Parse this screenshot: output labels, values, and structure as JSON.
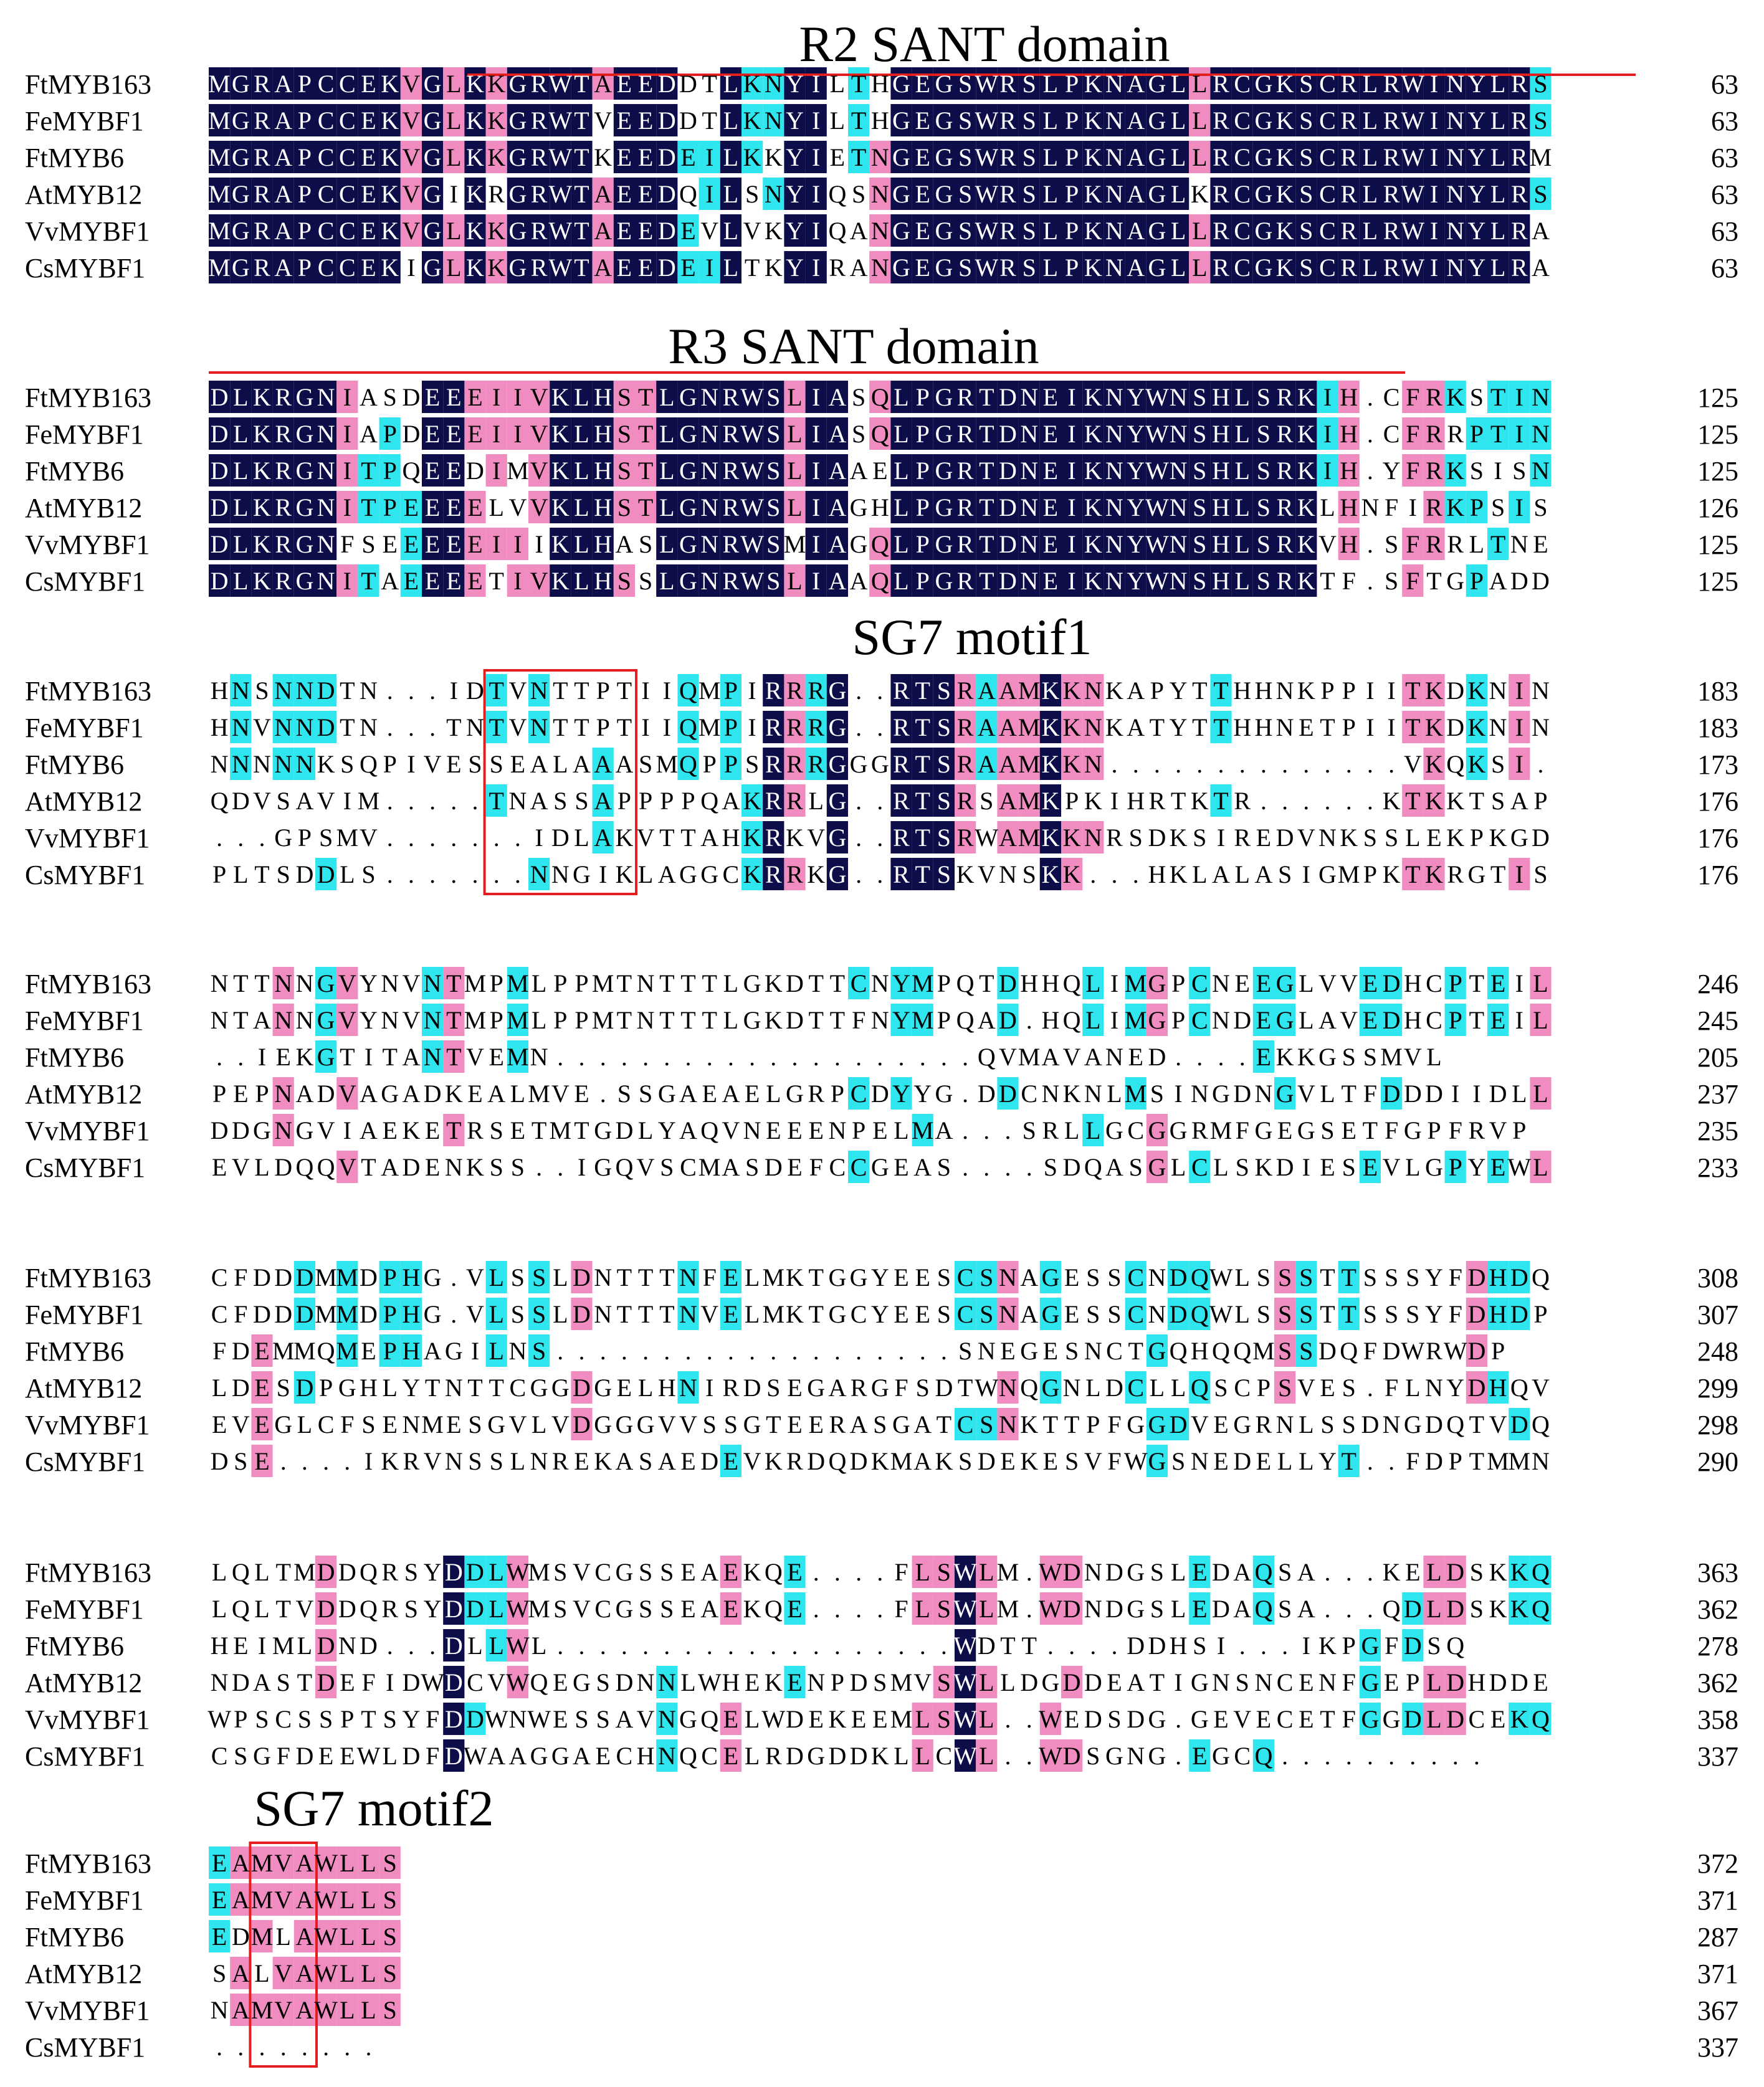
{
  "figure": {
    "colors": {
      "identical": "#0d0d4a",
      "similar_high": "#f08cc0",
      "similar_low": "#2fe6ee",
      "domain_line": "#e41e1e",
      "motif_box": "#e41e1e",
      "text": "#000000",
      "text_on_dark": "#ffffff"
    },
    "sequence_names": [
      "FtMYB163",
      "FeMYBF1",
      "FtMYB6",
      "AtMYB12",
      "VvMYBF1",
      "CsMYBF1"
    ],
    "blocks": [
      {
        "title": "R2 SANT domain",
        "rows": [
          {
            "name": "FtMYB163",
            "seq": "MGRAPCCEKVGLKKGRWTAEEDDTLKNYILTHGEGSWRSLPKNAGLLRCGKSCRLRWINYLRS",
            "end": "63"
          },
          {
            "name": "FeMYBF1",
            "seq": "MGRAPCCEKVGLKKGRWTVEEDDTLKNYILTHGEGSWRSLPKNAGLLRCGKSCRLRWINYLRS",
            "end": "63"
          },
          {
            "name": "FtMYB6",
            "seq": "MGRAPCCEKVGLKKGRWTKEEDEILKKYIETNGEGSWRSLPKNAGLLRCGKSCRLRWINYLRM",
            "end": "63"
          },
          {
            "name": "AtMYB12",
            "seq": "MGRAPCCEKVGIKRGRWTAEEDQILSNYIQSNGEGSWRSLPKNAGLKRCGKSCRLRWINYLRS",
            "end": "63"
          },
          {
            "name": "VvMYBF1",
            "seq": "MGRAPCCEKVGLKKGRWTAEEDEVLVKYIQANGEGSWRSLPKNAGLLRCGKSCRLRWINYLRA",
            "end": "63"
          },
          {
            "name": "CsMYBF1",
            "seq": "MGRAPCCEKIGLKKGRWTAEEDEILTKYIRANGEGSWRSLPKNAGLLRCGKSCRLRWINYLRA",
            "end": "63"
          }
        ]
      },
      {
        "title": "R3 SANT domain",
        "rows": [
          {
            "name": "FtMYB163",
            "seq": "DLKRGNIASDEEEIIVKLHSTLGNRWSLIASQLPGRTDNEIKNYWNSHLSRKIH.CFRKSTIN",
            "end": "125"
          },
          {
            "name": "FeMYBF1",
            "seq": "DLKRGNIAPDEEEIIVKLHSTLGNRWSLIASQLPGRTDNEIKNYWNSHLSRKIH.CFRRPTIN",
            "end": "125"
          },
          {
            "name": "FtMYB6",
            "seq": "DLKRGNITPQEEDIMVKLHSTLGNRWSLIAAELPGRTDNEIKNYWNSHLSRKIH.YFRKSISN",
            "end": "125"
          },
          {
            "name": "AtMYB12",
            "seq": "DLKRGNITPEEEELVVKLHSTLGNRWSLIAGHLPGRTDNEIKNYWNSHLSRKLHNFIRKPSIS",
            "end": "126"
          },
          {
            "name": "VvMYBF1",
            "seq": "DLKRGNFSEEEEEIIIKLHASLGNRWSMIAGQLPGRTDNEIKNYWNSHLSRKVH.SFRRLTNE",
            "end": "125"
          },
          {
            "name": "CsMYBF1",
            "seq": "DLKRGNITAEEEETIVKLHSSLGNRWSLIAAQLPGRTDNEIKNYWNSHLSRKTF.SFTGPADD",
            "end": "125"
          }
        ]
      },
      {
        "title": "SG7 motif1",
        "rows": [
          {
            "name": "FtMYB163",
            "seq": "HNSNNDTN...IDTVNTTPTIIQMPIRRRG..RTSRAAMKKNKAPYTTHHNKPPIITKDKNIN",
            "end": "183"
          },
          {
            "name": "FeMYBF1",
            "seq": "HNVNNDTN...TNTVNTTPTIIQMPIRRRG..RTSRAAMKKNKATYTTHHNETPIITKDKNIN",
            "end": "183"
          },
          {
            "name": "FtMYB6",
            "seq": "NNNNNKSQPIVESSEALAAASMQPPSRRRGGGRTSRAAMKKN..............VKQKSI.",
            "end": "173"
          },
          {
            "name": "AtMYB12",
            "seq": "QDVSAVIM.....TNASSAPPPPQAKRRLG..RTSRSAMKPKIHRTKTR......KTKKTSAP",
            "end": "176"
          },
          {
            "name": "VvMYBF1",
            "seq": "...GPSMV.......IDLAKVTTAHKRKVG..RTSRWAMKKNRSDKSIREDVNKSSLEKPKGD",
            "end": "176"
          },
          {
            "name": "CsMYBF1",
            "seq": "PLTSDDLS.......NNGIKLAGGCKRRKG..RTSKVNSKK...HKLALASIGMPKTKRGTIS",
            "end": "176"
          }
        ]
      },
      {
        "title": "",
        "rows": [
          {
            "name": "FtMYB163",
            "seq": "NTTNNGVYNVNTMPMLPPMTNTTTLGKDTTCNYMPQTDHHQLIMGPCNEEGLVVEDHCPTEIL",
            "end": "246"
          },
          {
            "name": "FeMYBF1",
            "seq": "NTANNGVYNVNTMPMLPPMTNTTTLGKDTTFNYMPQAD.HQLIMGPCNDEGLAVEDHCPTEIL",
            "end": "245"
          },
          {
            "name": "FtMYB6",
            "seq": "..IEKGTITANTVEMN....................QVMAVANED....EKKGSSMVL",
            "end": "205"
          },
          {
            "name": "AtMYB12",
            "seq": "PEPNADVAGADKEALMVE.SSGAEAELGRPCDYYG.DDCNKNLMSINGDNGVLTFDDDIIDLL",
            "end": "237"
          },
          {
            "name": "VvMYBF1",
            "seq": "DDGNGVIAEKETRSETMTGDLYAQVNEEENPELMA...SRLLGCGGRMFGEGSETFGPFRVP",
            "end": "235"
          },
          {
            "name": "CsMYBF1",
            "seq": "EVLDQQVTADENKSS..IGQVSCMASDEFCCGEAS....SDQASGLCLSKDIESEVLGPYEWL",
            "end": "233"
          }
        ]
      },
      {
        "title": "",
        "rows": [
          {
            "name": "FtMYB163",
            "seq": "CFDDDMMDPHG.VLSSLDNTTTNFELMKTGGYEESCSNAGESSCNDQWLSSSTTSSSYFDHDQ",
            "end": "308"
          },
          {
            "name": "FeMYBF1",
            "seq": "CFDDDMMDPHG.VLSSLDNTTTNVELMKTGCYEESCSNAGESSCNDQWLSSSTTSSSYFDHDP",
            "end": "307"
          },
          {
            "name": "FtMYB6",
            "seq": "FDEMMQMEPHAGILNS...................SNEGESNCTGQHQQMSSDQFDWRWDP",
            "end": "248"
          },
          {
            "name": "AtMYB12",
            "seq": "LDESDPGHLYTNTTCGGDGELHNIRDSEGARGFSDTWNQGNLDCLLQSCPSVES.FLNYDHQV",
            "end": "299"
          },
          {
            "name": "VvMYBF1",
            "seq": "EVEGLCFSENMESGVLVDGGGVVSSGTEERASGATCSNKTTPFGGDVEGRNLSSDNGDQTVDQ",
            "end": "298"
          },
          {
            "name": "CsMYBF1",
            "seq": "DSE....IKRVNSSLNREKASAEDEVKRDQDKMAKSDEKESVFWGSNEDELLYT..FDPTMMN",
            "end": "290"
          }
        ]
      },
      {
        "title": "",
        "rows": [
          {
            "name": "FtMYB163",
            "seq": "LQLTMDDQRSYDDLWMSVCGSSEAEKQE....FLSWLM.WDNDGSLEDAQSA...KELDSKKQ",
            "end": "363"
          },
          {
            "name": "FeMYBF1",
            "seq": "LQLTVDDQRSYDDLWMSVCGSSEAEKQE....FLSWLM.WDNDGSLEDAQSA...QDLDSKKQ",
            "end": "362"
          },
          {
            "name": "FtMYB6",
            "seq": "HEIMLDND...DLLWL...................WDTT....DDHSI...IKPGFDSQ",
            "end": "278"
          },
          {
            "name": "AtMYB12",
            "seq": "NDASTDEFIDWDCVWQEGSDNNLWHEKENPDSMVSWLLDGDDEATIGNSNCENFGEPLDHDDE",
            "end": "362"
          },
          {
            "name": "VvMYBF1",
            "seq": "WPSCSSPTSYFDDWNWESSAVNGQELWDEKEEMLSWL..WEDSDG.GEVECETFGGDLDCEKQ",
            "end": "358"
          },
          {
            "name": "CsMYBF1",
            "seq": "CSGFDEEWLDFDWAAGGAECHNQCELRDGDDKLLCWL..WDSGNG.EGCQ..........",
            "end": "337"
          }
        ]
      },
      {
        "title": "SG7 motif2",
        "rows": [
          {
            "name": "FtMYB163",
            "seq": "EAMVAWLLS",
            "end": "372"
          },
          {
            "name": "FeMYBF1",
            "seq": "EAMVAWLLS",
            "end": "371"
          },
          {
            "name": "FtMYB6",
            "seq": "EDMLAWLLS",
            "end": "287"
          },
          {
            "name": "AtMYB12",
            "seq": "SALVAWLLS",
            "end": "371"
          },
          {
            "name": "VvMYBF1",
            "seq": "NAMVAWLLS",
            "end": "367"
          },
          {
            "name": "CsMYBF1",
            "seq": "........",
            "end": "337"
          }
        ]
      }
    ]
  }
}
